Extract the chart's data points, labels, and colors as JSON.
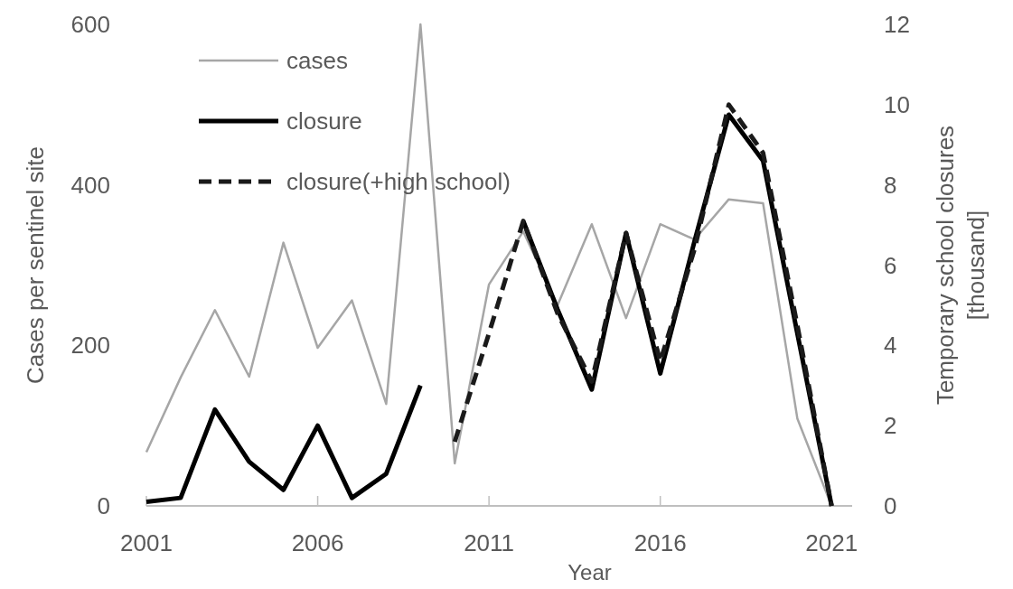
{
  "chart_data": {
    "type": "line",
    "xlabel": "Year",
    "ylabel": "Cases per sentinel site",
    "y2label": "Temporary school closures [thousand]",
    "x": [
      2001,
      2002,
      2003,
      2004,
      2005,
      2006,
      2007,
      2008,
      2009,
      2010,
      2011,
      2012,
      2013,
      2014,
      2015,
      2016,
      2017,
      2018,
      2019,
      2020,
      2021
    ],
    "series": [
      {
        "name": "cases",
        "color": "#a6a6a6",
        "line_style": "solid",
        "values": [
          67,
          160,
          244,
          161,
          328,
          197,
          256,
          127,
          600,
          53,
          276,
          342,
          250,
          351,
          234,
          351,
          332,
          382,
          377,
          109,
          0
        ]
      },
      {
        "name": "closure",
        "color": "#000000",
        "axis": "y2",
        "line_style": "solid",
        "values": [
          0.1,
          0.2,
          2.4,
          1.1,
          0.4,
          2.0,
          0.2,
          0.8,
          3.0,
          null,
          null,
          7.1,
          4.9,
          2.9,
          6.8,
          3.3,
          6.6,
          9.75,
          8.6,
          4.3,
          0
        ]
      },
      {
        "name": "closure(+high school)",
        "color": "#1a1a1a",
        "axis": "y2",
        "line_style": "dashed",
        "values": [
          null,
          null,
          null,
          null,
          null,
          null,
          null,
          null,
          null,
          1.6,
          4.3,
          7.1,
          4.8,
          3.1,
          6.8,
          3.6,
          6.4,
          10.0,
          8.8,
          4.5,
          0
        ]
      }
    ],
    "xlim": [
      2001,
      2021.6
    ],
    "xticks": [
      2001,
      2006,
      2011,
      2016,
      2021
    ],
    "ylim": [
      0,
      600
    ],
    "yticks": [
      0,
      200,
      400,
      600
    ],
    "y2lim": [
      0,
      12
    ],
    "y2ticks": [
      0,
      2,
      4,
      6,
      8,
      10,
      12
    ],
    "grid": false,
    "legend": "top left",
    "marker": "none"
  }
}
